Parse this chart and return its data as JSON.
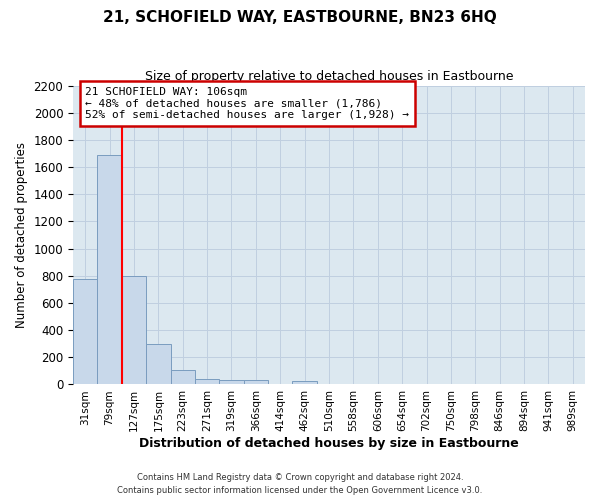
{
  "title": "21, SCHOFIELD WAY, EASTBOURNE, BN23 6HQ",
  "subtitle": "Size of property relative to detached houses in Eastbourne",
  "xlabel": "Distribution of detached houses by size in Eastbourne",
  "ylabel": "Number of detached properties",
  "footer_line1": "Contains HM Land Registry data © Crown copyright and database right 2024.",
  "footer_line2": "Contains public sector information licensed under the Open Government Licence v3.0.",
  "categories": [
    "31sqm",
    "79sqm",
    "127sqm",
    "175sqm",
    "223sqm",
    "271sqm",
    "319sqm",
    "366sqm",
    "414sqm",
    "462sqm",
    "510sqm",
    "558sqm",
    "606sqm",
    "654sqm",
    "702sqm",
    "750sqm",
    "798sqm",
    "846sqm",
    "894sqm",
    "941sqm",
    "989sqm"
  ],
  "values": [
    775,
    1690,
    795,
    295,
    110,
    38,
    30,
    30,
    0,
    25,
    0,
    0,
    0,
    0,
    0,
    0,
    0,
    0,
    0,
    0,
    0
  ],
  "bar_color": "#c8d8ea",
  "bar_edge_color": "#7a9cbf",
  "property_line_x": 1.5,
  "property_line_color": "red",
  "annotation_text_line1": "21 SCHOFIELD WAY: 106sqm",
  "annotation_text_line2": "← 48% of detached houses are smaller (1,786)",
  "annotation_text_line3": "52% of semi-detached houses are larger (1,928) →",
  "ylim": [
    0,
    2200
  ],
  "yticks": [
    0,
    200,
    400,
    600,
    800,
    1000,
    1200,
    1400,
    1600,
    1800,
    2000,
    2200
  ],
  "background_color": "#ffffff",
  "grid_color": "#c0cfe0",
  "plot_bg_color": "#dce8f0"
}
